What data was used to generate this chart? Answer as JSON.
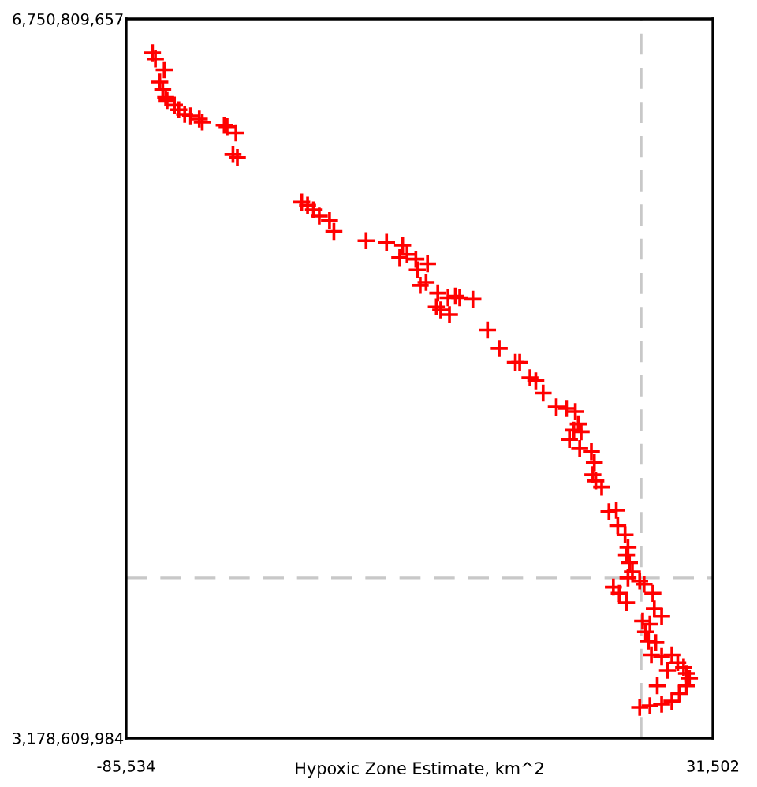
{
  "chart_data": {
    "type": "scatter",
    "xlabel": "Hypoxic Zone Estimate, km^2",
    "xlim": [
      -85534,
      31502
    ],
    "ylim": [
      3178609984,
      6750809657
    ],
    "xticks": [
      {
        "value": -85534,
        "label": "-85,534"
      },
      {
        "value": 31502,
        "label": "31,502"
      }
    ],
    "yticks": [
      {
        "value": 3178609984,
        "label": "3,178,609,984"
      },
      {
        "value": 6750809657,
        "label": "6,750,809,657"
      }
    ],
    "marker": "cross",
    "ref_lines": [
      {
        "axis": "x",
        "value": 17200,
        "color": "#c8c8c8",
        "line_style": "dashed"
      },
      {
        "axis": "y",
        "value": 3974000000,
        "color": "#c8c8c8",
        "line_style": "dashed"
      }
    ],
    "series": [
      {
        "color": "#ff0000",
        "x": [
          -80281,
          -79697,
          -77946,
          -78821,
          -78237,
          -77654,
          -77362,
          -75903,
          -75027,
          -73860,
          -72692,
          -70941,
          -70357,
          -65979,
          -65396,
          -63644,
          -64228,
          -63353,
          -50511,
          -49343,
          -48176,
          -47008,
          -44965,
          -44090,
          -37669,
          -33583,
          -30372,
          -30956,
          -29497,
          -27746,
          -27454,
          -25411,
          -26870,
          -25703,
          -23368,
          -21325,
          -23660,
          -22784,
          -21033,
          -19865,
          -18990,
          -16363,
          -13445,
          -11110,
          -7899,
          -7024,
          -4981,
          -3813,
          -2354,
          273,
          2316,
          4067,
          4651,
          3775,
          5234,
          2900,
          4943,
          7277,
          7861,
          7569,
          8153,
          9321,
          10780,
          12239,
          12531,
          13990,
          14574,
          14282,
          14866,
          15450,
          14574,
          16909,
          17784,
          19536,
          11655,
          12823,
          14282,
          19827,
          21287,
          17493,
          18952,
          18076,
          18660,
          20119,
          19244,
          21287,
          23330,
          24497,
          25665,
          26248,
          26832,
          22454,
          26248,
          24789,
          20411,
          23330,
          21287,
          18952,
          16909
        ],
        "values": [
          6582500000.0,
          6551900000.0,
          6498400000.0,
          6437200000.0,
          6398900000.0,
          6360700000.0,
          6345400000.0,
          6322500000.0,
          6299500000.0,
          6276600000.0,
          6268900000.0,
          6253600000.0,
          6238300000.0,
          6223000000.0,
          6215400000.0,
          6184800000.0,
          6077700000.0,
          6062400000.0,
          5840600000.0,
          5825300000.0,
          5802300000.0,
          5771700000.0,
          5748800000.0,
          5695200000.0,
          5649300000.0,
          5641700000.0,
          5626400000.0,
          5565200000.0,
          5580500000.0,
          5557500000.0,
          5504000000.0,
          5534600000.0,
          5427500000.0,
          5442800000.0,
          5389300000.0,
          5366300000.0,
          5320400000.0,
          5305100000.0,
          5282200000.0,
          5374000000.0,
          5366300000.0,
          5358700000.0,
          5205700000.0,
          5113900000.0,
          5045000000.0,
          5045000000.0,
          4968500000.0,
          4953300000.0,
          4892100000.0,
          4823200000.0,
          4815600000.0,
          4800300000.0,
          4739100000.0,
          4708500000.0,
          4700800000.0,
          4662600000.0,
          4616700000.0,
          4601400000.0,
          4546800000.0,
          4486600000.0,
          4456100000.0,
          4425500000.0,
          4303100000.0,
          4310700000.0,
          4234200000.0,
          4188300000.0,
          4127100000.0,
          4088900000.0,
          4050600000.0,
          4004700000.0,
          3974200000.0,
          3958900000.0,
          3943600000.0,
          3897700000.0,
          3928300000.0,
          3897700000.0,
          3851800000.0,
          3821200000.0,
          3782900000.0,
          3760000000.0,
          3744700000.0,
          3706400000.0,
          3660500000.0,
          3652900000.0,
          3591700000.0,
          3584000000.0,
          3591700000.0,
          3553400000.0,
          3530500000.0,
          3499900000.0,
          3476900000.0,
          3515200000.0,
          3438700000.0,
          3400500000.0,
          3438700000.0,
          3362200000.0,
          3346900000.0,
          3339300000.0,
          3331600000.0
        ]
      }
    ]
  }
}
